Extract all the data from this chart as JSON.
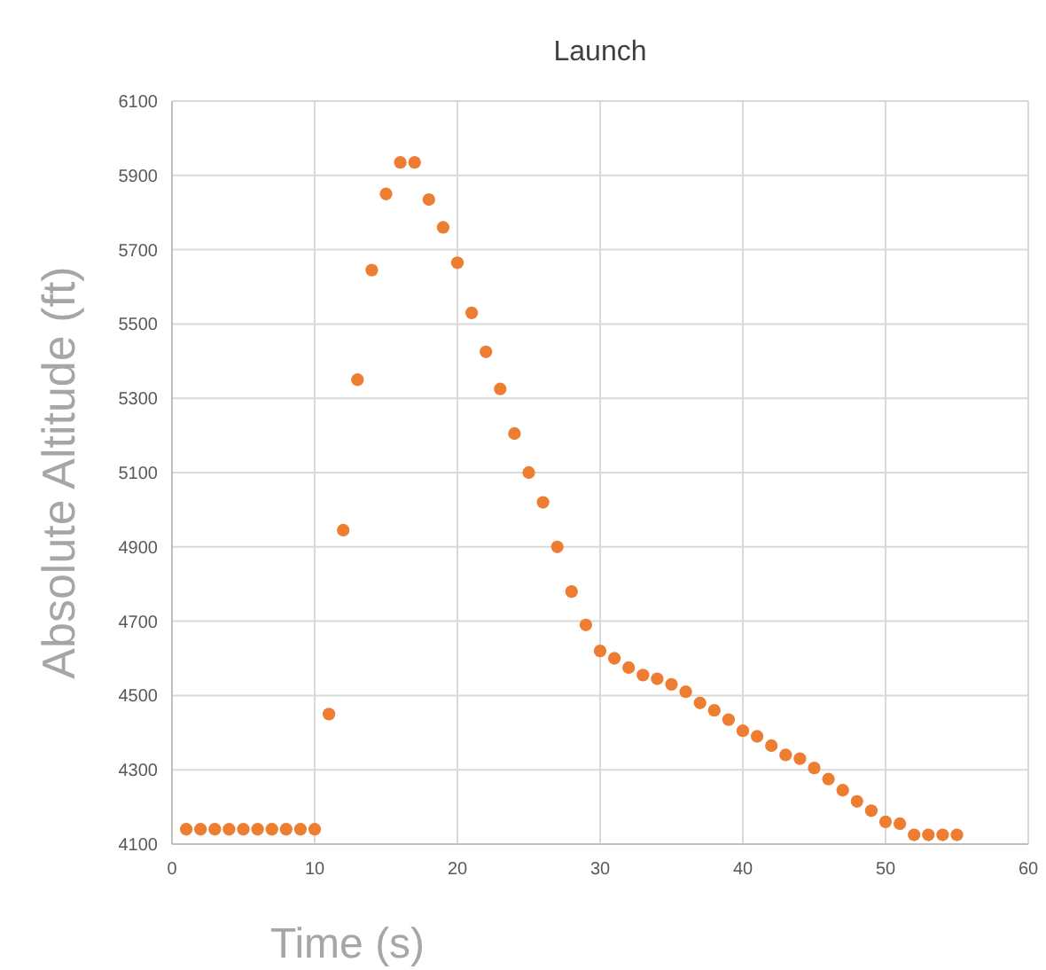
{
  "chart_data": {
    "type": "scatter",
    "title": "Launch",
    "xlabel": "Time (s)",
    "ylabel": "Absolute Altitude (ft)",
    "x": [
      1,
      2,
      3,
      4,
      5,
      6,
      7,
      8,
      9,
      10,
      11,
      12,
      13,
      14,
      15,
      16,
      17,
      18,
      19,
      20,
      21,
      22,
      23,
      24,
      25,
      26,
      27,
      28,
      29,
      30,
      31,
      32,
      33,
      34,
      35,
      36,
      37,
      38,
      39,
      40,
      41,
      42,
      43,
      44,
      45,
      46,
      47,
      48,
      49,
      50,
      51,
      52,
      53,
      54,
      55
    ],
    "series": [
      {
        "color": "#ed7d31",
        "values": [
          4140,
          4140,
          4140,
          4140,
          4140,
          4140,
          4140,
          4140,
          4140,
          4140,
          4450,
          4945,
          5350,
          5645,
          5850,
          5935,
          5935,
          5835,
          5760,
          5665,
          5530,
          5425,
          5325,
          5205,
          5100,
          5020,
          4900,
          4780,
          4690,
          4620,
          4600,
          4575,
          4555,
          4545,
          4530,
          4510,
          4480,
          4460,
          4435,
          4405,
          4390,
          4365,
          4340,
          4330,
          4305,
          4275,
          4245,
          4215,
          4190,
          4160,
          4155,
          4125,
          4125,
          4125,
          4125
        ]
      }
    ],
    "xlim": [
      0,
      60
    ],
    "xticks": [
      0,
      10,
      20,
      30,
      40,
      50,
      60
    ],
    "ylim": [
      4100,
      6100
    ],
    "yticks": [
      4100,
      4300,
      4500,
      4700,
      4900,
      5100,
      5300,
      5500,
      5700,
      5900,
      6100
    ],
    "grid": true,
    "marker": "circle"
  }
}
